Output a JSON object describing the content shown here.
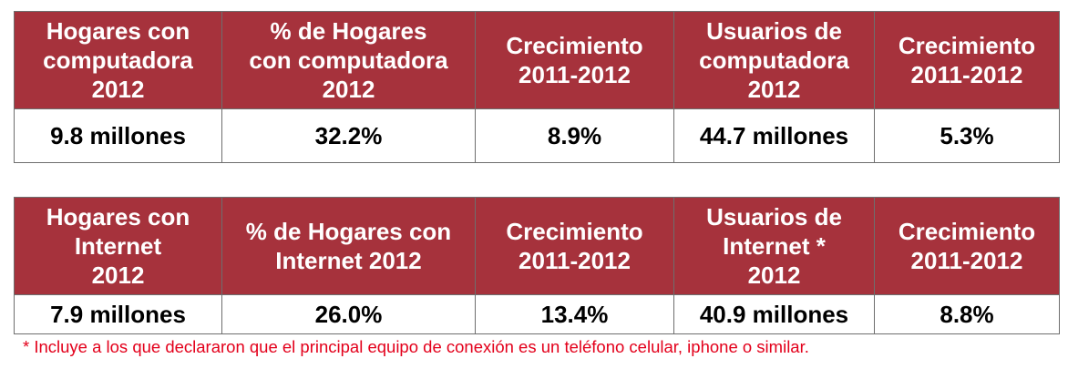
{
  "tables": [
    {
      "headers": [
        "Hogares con\ncomputadora\n2012",
        "% de Hogares\ncon computadora\n2012",
        "Crecimiento\n2011-2012",
        "Usuarios de\ncomputadora\n2012",
        "Crecimiento\n2011-2012"
      ],
      "values": [
        "9.8 millones",
        "32.2%",
        "8.9%",
        "44.7 millones",
        "5.3%"
      ]
    },
    {
      "headers": [
        "Hogares con\nInternet\n2012",
        "% de Hogares con\nInternet 2012",
        "Crecimiento\n2011-2012",
        "Usuarios de\nInternet *\n2012",
        "Crecimiento\n2011-2012"
      ],
      "values": [
        "7.9 millones",
        "26.0%",
        "13.4%",
        "40.9 millones",
        "8.8%"
      ]
    }
  ],
  "footnote": "* Incluye a los que declararon que el principal equipo de conexión es un teléfono celular, iphone o similar.",
  "colors": {
    "header_background": "#a6323c",
    "header_text": "#ffffff",
    "footnote_text": "#e3001b"
  }
}
